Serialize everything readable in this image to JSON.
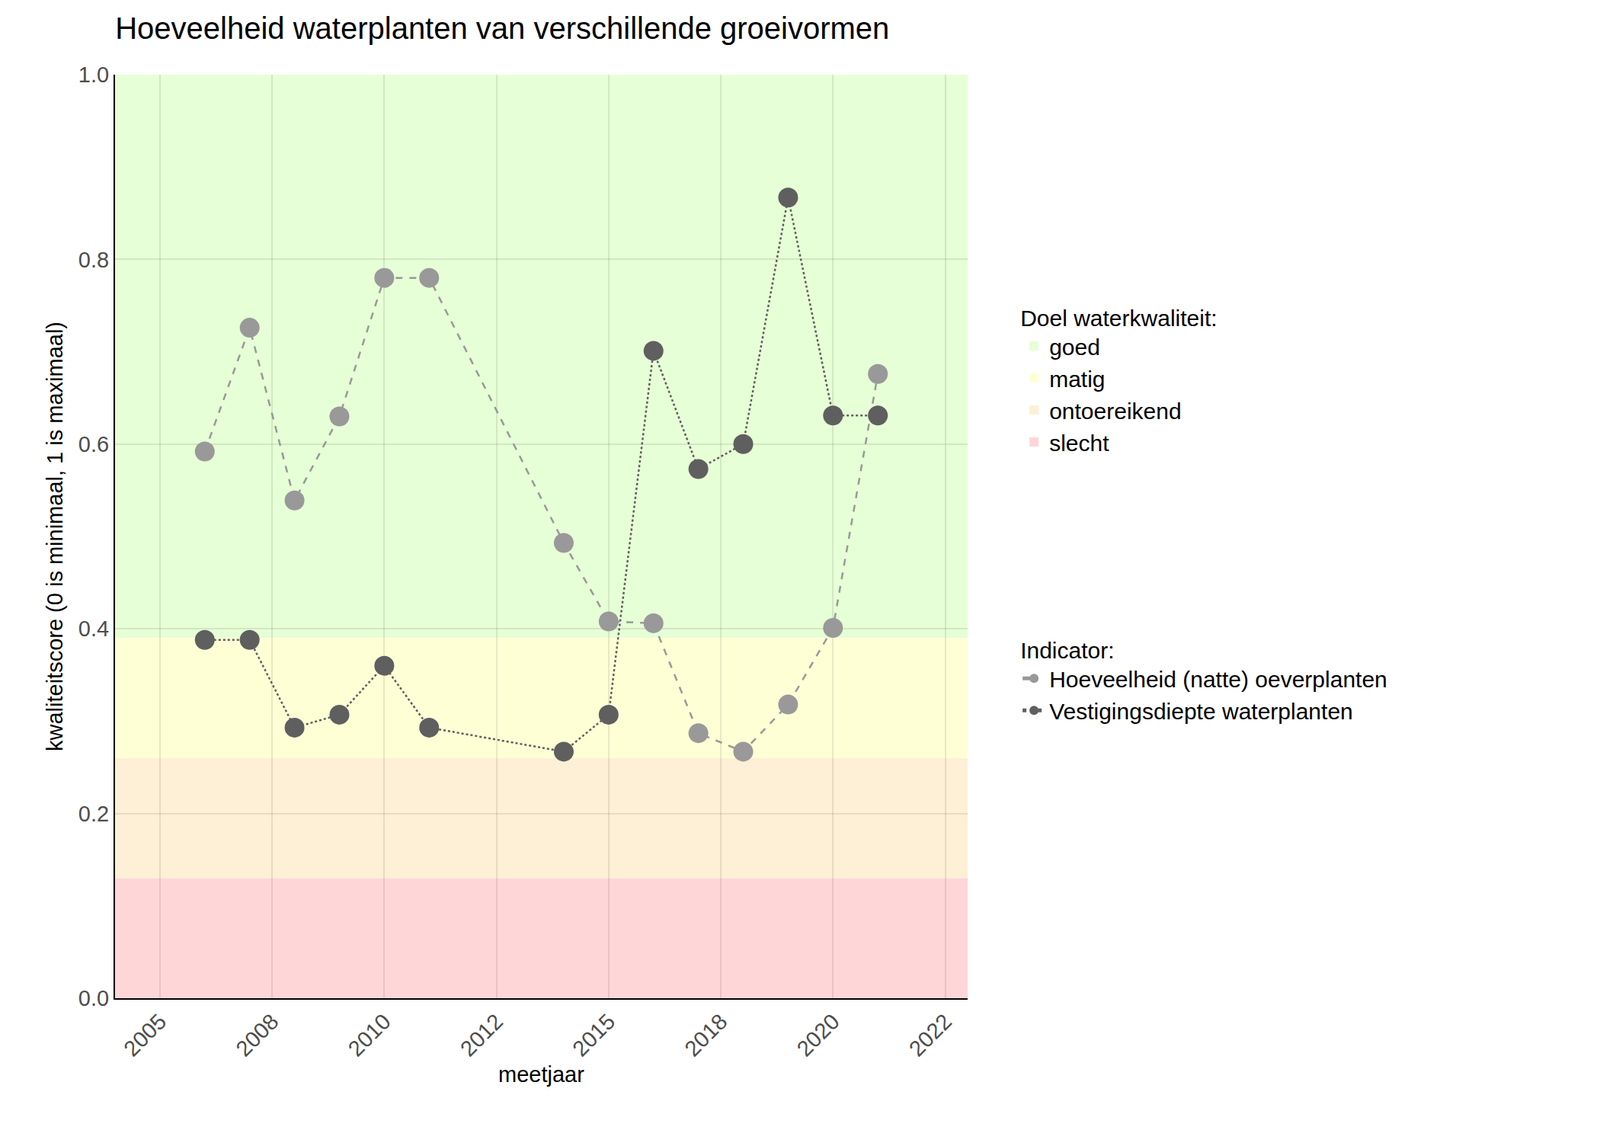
{
  "chart_data": {
    "type": "line",
    "title": "Hoeveelheid waterplanten van verschillende groeivormen",
    "x_label": "meetjaar",
    "y_label": "kwaliteitscore (0 is minimaal, 1 is maximaal)",
    "x": [
      2006,
      2007,
      2008,
      2009,
      2010,
      2011,
      2014,
      2015,
      2016,
      2017,
      2018,
      2019,
      2020,
      2021
    ],
    "series": [
      {
        "name": "Hoeveelheid (natte) oeverplanten",
        "color": "#999999",
        "marker": "circle",
        "line_style": "dash",
        "values": [
          0.592,
          0.726,
          0.539,
          0.63,
          0.78,
          0.78,
          0.493,
          0.408,
          0.406,
          0.287,
          0.267,
          0.318,
          0.401,
          0.676
        ]
      },
      {
        "name": "Vestigingsdiepte waterplanten",
        "color": "#5f5f5f",
        "marker": "circle",
        "line_style": "dot",
        "values": [
          0.388,
          0.388,
          0.293,
          0.307,
          0.36,
          0.293,
          0.267,
          0.307,
          0.701,
          0.573,
          0.6,
          0.867,
          0.631,
          0.631
        ]
      }
    ],
    "legend_title": "Indicator:",
    "bands_title": "Doel waterkwaliteit:",
    "bands": [
      {
        "name": "goed",
        "from": 0.39,
        "to": 1.0,
        "color": "#e6ffd6"
      },
      {
        "name": "matig",
        "from": 0.26,
        "to": 0.39,
        "color": "#ffffd6"
      },
      {
        "name": "ontoereikend",
        "from": 0.13,
        "to": 0.26,
        "color": "#fdf0d6"
      },
      {
        "name": "slecht",
        "from": 0.0,
        "to": 0.13,
        "color": "#ffd6d8"
      }
    ],
    "xlim": [
      2004,
      2023
    ],
    "xticks": [
      2005,
      {
        "value": 2007.5,
        "label": "2008"
      },
      2010,
      {
        "value": 2012.5,
        "label": "2012"
      },
      2015,
      {
        "value": 2017.5,
        "label": "2018"
      },
      2020,
      {
        "value": 2022.5,
        "label": "2022"
      }
    ],
    "ylim": [
      0,
      1
    ],
    "yticks": [
      {
        "value": 0,
        "label": "0.0"
      },
      0.2,
      0.4,
      0.6,
      0.8,
      {
        "value": 1,
        "label": "1.0"
      }
    ],
    "grid": true,
    "legend": "right"
  }
}
